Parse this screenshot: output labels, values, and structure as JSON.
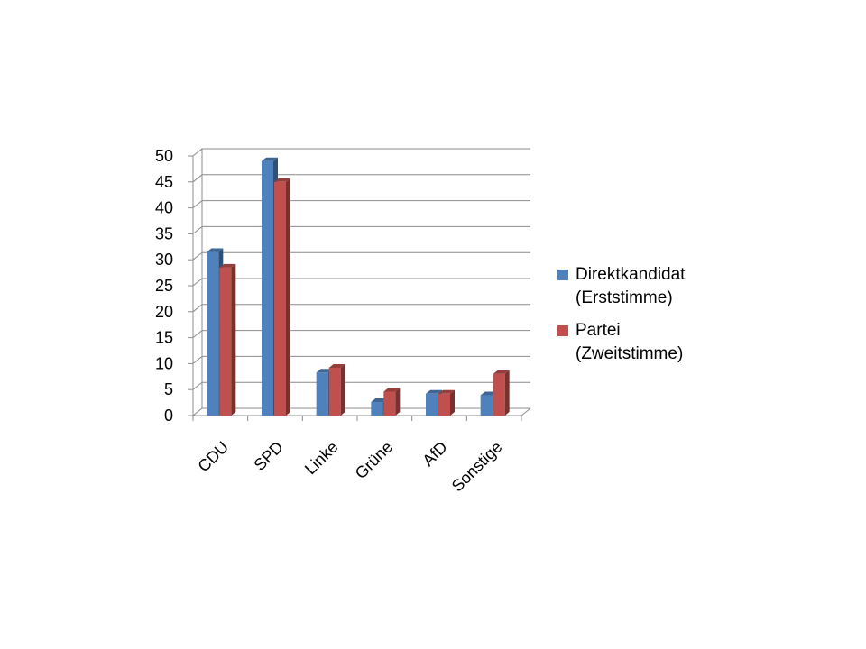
{
  "chart_data": {
    "type": "bar",
    "categories": [
      "CDU",
      "SPD",
      "Linke",
      "Grüne",
      "AfD",
      "Sonstige"
    ],
    "series": [
      {
        "name": "Direktkandidat (Erststimme)",
        "color": "#4f81bd",
        "values": [
          31.5,
          49,
          8.3,
          2.6,
          4.2,
          3.9
        ]
      },
      {
        "name": "Partei (Zweitstimme)",
        "color": "#c0504d",
        "values": [
          28.5,
          45,
          9.2,
          4.6,
          4.2,
          8.0
        ]
      }
    ],
    "ylim": [
      0,
      50
    ],
    "yticks": [
      "0",
      "5",
      "10",
      "15",
      "20",
      "25",
      "30",
      "35",
      "40",
      "45",
      "50"
    ],
    "grid": true,
    "legend_position": "right",
    "style": "3d-clustered-column"
  },
  "legend": {
    "items": [
      {
        "label": "Direktkandidat\n(Erststimme)",
        "color": "#4f81bd"
      },
      {
        "label": "Partei\n(Zweitstimme)",
        "color": "#c0504d"
      }
    ]
  }
}
